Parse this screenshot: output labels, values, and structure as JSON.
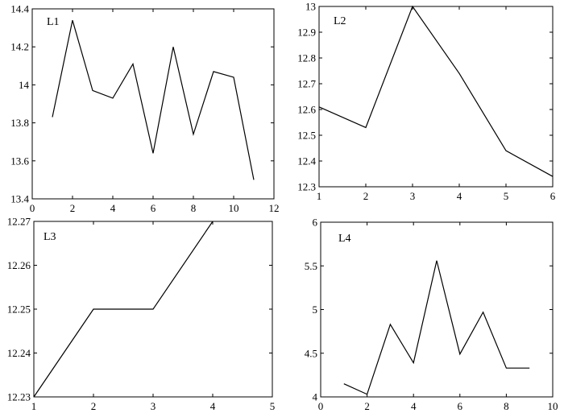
{
  "chart_data": [
    {
      "type": "line",
      "label": "L1",
      "xlim": [
        0,
        12
      ],
      "ylim": [
        13.4,
        14.4
      ],
      "xticks": [
        0,
        2,
        4,
        6,
        8,
        10,
        12
      ],
      "yticks": [
        13.4,
        13.6,
        13.8,
        14,
        14.2,
        14.4
      ],
      "xtick_labels": [
        "0",
        "2",
        "4",
        "6",
        "8",
        "10",
        "12"
      ],
      "ytick_labels": [
        "13.4",
        "13.6",
        "13.8",
        "14",
        "14.2",
        "14.4"
      ],
      "x": [
        1,
        2,
        3,
        4,
        5,
        6,
        7,
        8,
        9,
        10,
        11
      ],
      "y": [
        13.83,
        14.34,
        13.97,
        13.93,
        14.11,
        13.64,
        14.2,
        13.74,
        14.07,
        14.04,
        13.5
      ],
      "grid": false,
      "color": "#000000"
    },
    {
      "type": "line",
      "label": "L2",
      "xlim": [
        1,
        6
      ],
      "ylim": [
        12.3,
        13.0
      ],
      "xticks": [
        1,
        2,
        3,
        4,
        5,
        6
      ],
      "yticks": [
        12.3,
        12.4,
        12.5,
        12.6,
        12.7,
        12.8,
        12.9,
        13.0
      ],
      "xtick_labels": [
        "1",
        "2",
        "3",
        "4",
        "5",
        "6"
      ],
      "ytick_labels": [
        "12.3",
        "12.4",
        "12.5",
        "12.6",
        "12.7",
        "12.8",
        "12.9",
        "13"
      ],
      "x": [
        1,
        2,
        3,
        4,
        5,
        6
      ],
      "y": [
        12.61,
        12.53,
        13.0,
        12.74,
        12.44,
        12.34
      ],
      "grid": false,
      "color": "#000000"
    },
    {
      "type": "line",
      "label": "L3",
      "xlim": [
        1,
        5
      ],
      "ylim": [
        12.23,
        12.27
      ],
      "xticks": [
        1,
        2,
        3,
        4,
        5
      ],
      "yticks": [
        12.23,
        12.24,
        12.25,
        12.26,
        12.27
      ],
      "xtick_labels": [
        "1",
        "2",
        "3",
        "4",
        "5"
      ],
      "ytick_labels": [
        "12.23",
        "12.24",
        "12.25",
        "12.26",
        "12.27"
      ],
      "x": [
        1,
        2,
        3,
        4
      ],
      "y": [
        12.23,
        12.25,
        12.25,
        12.27
      ],
      "grid": false,
      "color": "#000000"
    },
    {
      "type": "line",
      "label": "L4",
      "xlim": [
        0,
        10
      ],
      "ylim": [
        4,
        6
      ],
      "xticks": [
        0,
        2,
        4,
        6,
        8,
        10
      ],
      "yticks": [
        4,
        4.5,
        5,
        5.5,
        6
      ],
      "xtick_labels": [
        "0",
        "2",
        "4",
        "6",
        "8",
        "10"
      ],
      "ytick_labels": [
        "4",
        "4.5",
        "5",
        "5.5",
        "6"
      ],
      "x": [
        1,
        2,
        3,
        4,
        5,
        6,
        7,
        8,
        9
      ],
      "y": [
        4.15,
        4.03,
        4.83,
        4.39,
        5.56,
        4.49,
        4.97,
        4.33,
        4.33
      ],
      "grid": false,
      "color": "#000000"
    }
  ]
}
